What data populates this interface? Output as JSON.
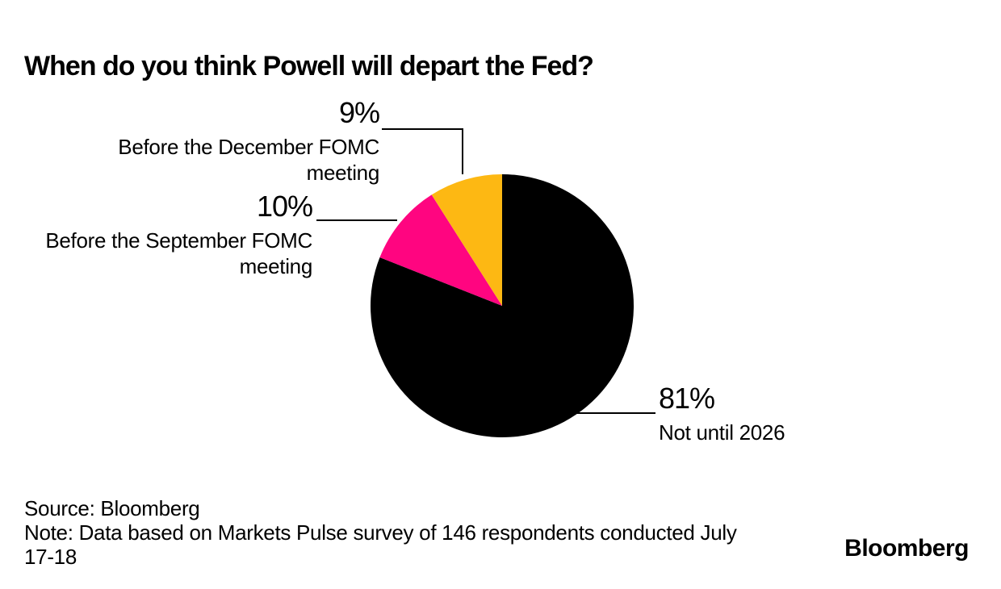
{
  "title": "When do you think Powell will depart the Fed?",
  "chart_data": {
    "type": "pie",
    "title": "When do you think Powell will depart the Fed?",
    "start_angle_deg": 0,
    "direction": "clockwise",
    "legend_position": "none",
    "slices": [
      {
        "label": "Not until 2026",
        "value": 81,
        "value_label": "81%",
        "color": "#000000"
      },
      {
        "label": "Before the September FOMC meeting",
        "value": 10,
        "value_label": "10%",
        "color": "#ff0580"
      },
      {
        "label": "Before the December FOMC meeting",
        "value": 9,
        "value_label": "9%",
        "color": "#fdb813"
      }
    ]
  },
  "annotations": {
    "december": {
      "pct": "9%",
      "line1": "Before the December FOMC",
      "line2": "meeting"
    },
    "september": {
      "pct": "10%",
      "line1": "Before the September FOMC",
      "line2": "meeting"
    },
    "not2026": {
      "pct": "81%",
      "line1": "Not until 2026"
    }
  },
  "footer": {
    "source": "Source: Bloomberg",
    "note": "Note: Data based on Markets Pulse survey of 146 respondents conducted July\n17-18",
    "brand": "Bloomberg"
  }
}
